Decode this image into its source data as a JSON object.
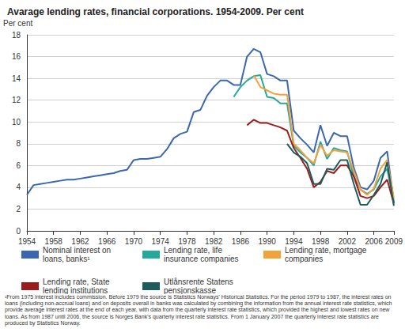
{
  "chart_data": {
    "type": "line",
    "title": "Avarage lending rates, financial corporations. 1954-2009. Per cent",
    "y_label": "Per cent",
    "footnote": "¹From 1975 interest includes commission. Before 1979 the source is Statistics Norways' Historical Statistics. For the period 1979 to 1987, the interest rates on loans (including non-accrual loans) and on deposits overall in banks was calculated by combining the information from the annual interest rate statistics, which provide average interest rates at the end of each year, with data from the quarterly interest rate statistics, which provided the highest and lowest rates on new loans. As from 1987 until 2006, the source is Norges Bank's quarterly interest rate statistics. From 1 January 2007 the quarterly interest rate statistics are produced by Statistics Norway.",
    "x": [
      1954,
      1955,
      1956,
      1957,
      1958,
      1959,
      1960,
      1961,
      1962,
      1963,
      1964,
      1965,
      1966,
      1967,
      1968,
      1969,
      1970,
      1971,
      1972,
      1973,
      1974,
      1975,
      1976,
      1977,
      1978,
      1979,
      1980,
      1981,
      1982,
      1983,
      1984,
      1985,
      1986,
      1987,
      1988,
      1989,
      1990,
      1991,
      1992,
      1993,
      1994,
      1995,
      1996,
      1997,
      1998,
      1999,
      2000,
      2001,
      2002,
      2003,
      2004,
      2005,
      2006,
      2007,
      2008,
      2009
    ],
    "xlim": [
      1954,
      2009
    ],
    "xticks": [
      1954,
      1958,
      1962,
      1966,
      1970,
      1974,
      1978,
      1982,
      1986,
      1990,
      1994,
      1998,
      2002,
      2006,
      2009
    ],
    "ylim": [
      0,
      18
    ],
    "yticks": [
      0,
      2,
      4,
      6,
      8,
      10,
      12,
      14,
      16,
      18
    ],
    "grid": true,
    "legend": "bottom",
    "series": [
      {
        "name": "Nominal interest on loans, banks¹",
        "color": "#3a67b0",
        "values": [
          3.3,
          4.2,
          4.3,
          4.4,
          4.5,
          4.6,
          4.7,
          4.7,
          4.8,
          4.9,
          5.0,
          5.1,
          5.2,
          5.3,
          5.5,
          5.6,
          6.5,
          6.6,
          6.6,
          6.7,
          6.8,
          7.5,
          8.5,
          8.9,
          9.1,
          10.9,
          11.1,
          12.4,
          13.2,
          13.8,
          13.8,
          13.4,
          13.4,
          16.0,
          16.7,
          16.4,
          14.4,
          14.2,
          13.8,
          13.8,
          9.2,
          8.5,
          7.9,
          7.2,
          9.7,
          7.8,
          9.0,
          8.7,
          8.7,
          5.8,
          4.0,
          3.8,
          4.6,
          6.7,
          7.3,
          2.6
        ]
      },
      {
        "name": "Lending rate, life insurance companies",
        "color": "#26a99b",
        "values": [
          null,
          null,
          null,
          null,
          null,
          null,
          null,
          null,
          null,
          null,
          null,
          null,
          null,
          null,
          null,
          null,
          null,
          null,
          null,
          null,
          null,
          null,
          null,
          null,
          null,
          null,
          null,
          null,
          null,
          null,
          null,
          12.3,
          13.2,
          13.8,
          14.2,
          14.3,
          12.3,
          12.2,
          11.7,
          11.7,
          7.8,
          7.2,
          6.7,
          6.0,
          8.2,
          6.6,
          7.6,
          7.4,
          7.3,
          5.0,
          3.8,
          3.4,
          3.8,
          5.0,
          5.7,
          2.6
        ]
      },
      {
        "name": "Lending rate, mortgage companies",
        "color": "#f2a23a",
        "values": [
          null,
          null,
          null,
          null,
          null,
          null,
          null,
          null,
          null,
          null,
          null,
          null,
          null,
          null,
          null,
          null,
          null,
          null,
          null,
          null,
          null,
          null,
          null,
          null,
          null,
          null,
          null,
          null,
          null,
          null,
          null,
          null,
          null,
          null,
          14.3,
          13.2,
          12.9,
          12.6,
          12.5,
          12.5,
          8.0,
          7.4,
          6.7,
          6.2,
          7.9,
          6.9,
          7.4,
          7.3,
          7.2,
          5.5,
          3.8,
          3.3,
          3.9,
          5.7,
          6.5,
          3.0
        ]
      },
      {
        "name": "Lending rate, State lending institutions",
        "color": "#9b1c1c",
        "values": [
          null,
          null,
          null,
          null,
          null,
          null,
          null,
          null,
          null,
          null,
          null,
          null,
          null,
          null,
          null,
          null,
          null,
          null,
          null,
          null,
          null,
          null,
          null,
          null,
          null,
          null,
          null,
          null,
          null,
          null,
          null,
          null,
          null,
          9.7,
          10.2,
          9.9,
          9.9,
          9.7,
          9.5,
          9.2,
          7.6,
          6.7,
          5.7,
          4.0,
          4.5,
          5.5,
          5.3,
          6.0,
          6.0,
          5.0,
          3.2,
          3.0,
          3.2,
          4.0,
          4.7,
          2.5
        ]
      },
      {
        "name": "Utlånsrente Statens pensjonskasse",
        "color": "#1e5c5c",
        "values": [
          null,
          null,
          null,
          null,
          null,
          null,
          null,
          null,
          null,
          null,
          null,
          null,
          null,
          null,
          null,
          null,
          null,
          null,
          null,
          null,
          null,
          null,
          null,
          null,
          null,
          null,
          null,
          null,
          null,
          null,
          null,
          null,
          null,
          null,
          null,
          null,
          null,
          null,
          null,
          8.0,
          7.2,
          6.8,
          6.2,
          4.3,
          4.3,
          5.7,
          5.6,
          6.5,
          6.5,
          4.3,
          2.4,
          2.4,
          3.3,
          4.3,
          6.3,
          2.3
        ]
      }
    ]
  }
}
